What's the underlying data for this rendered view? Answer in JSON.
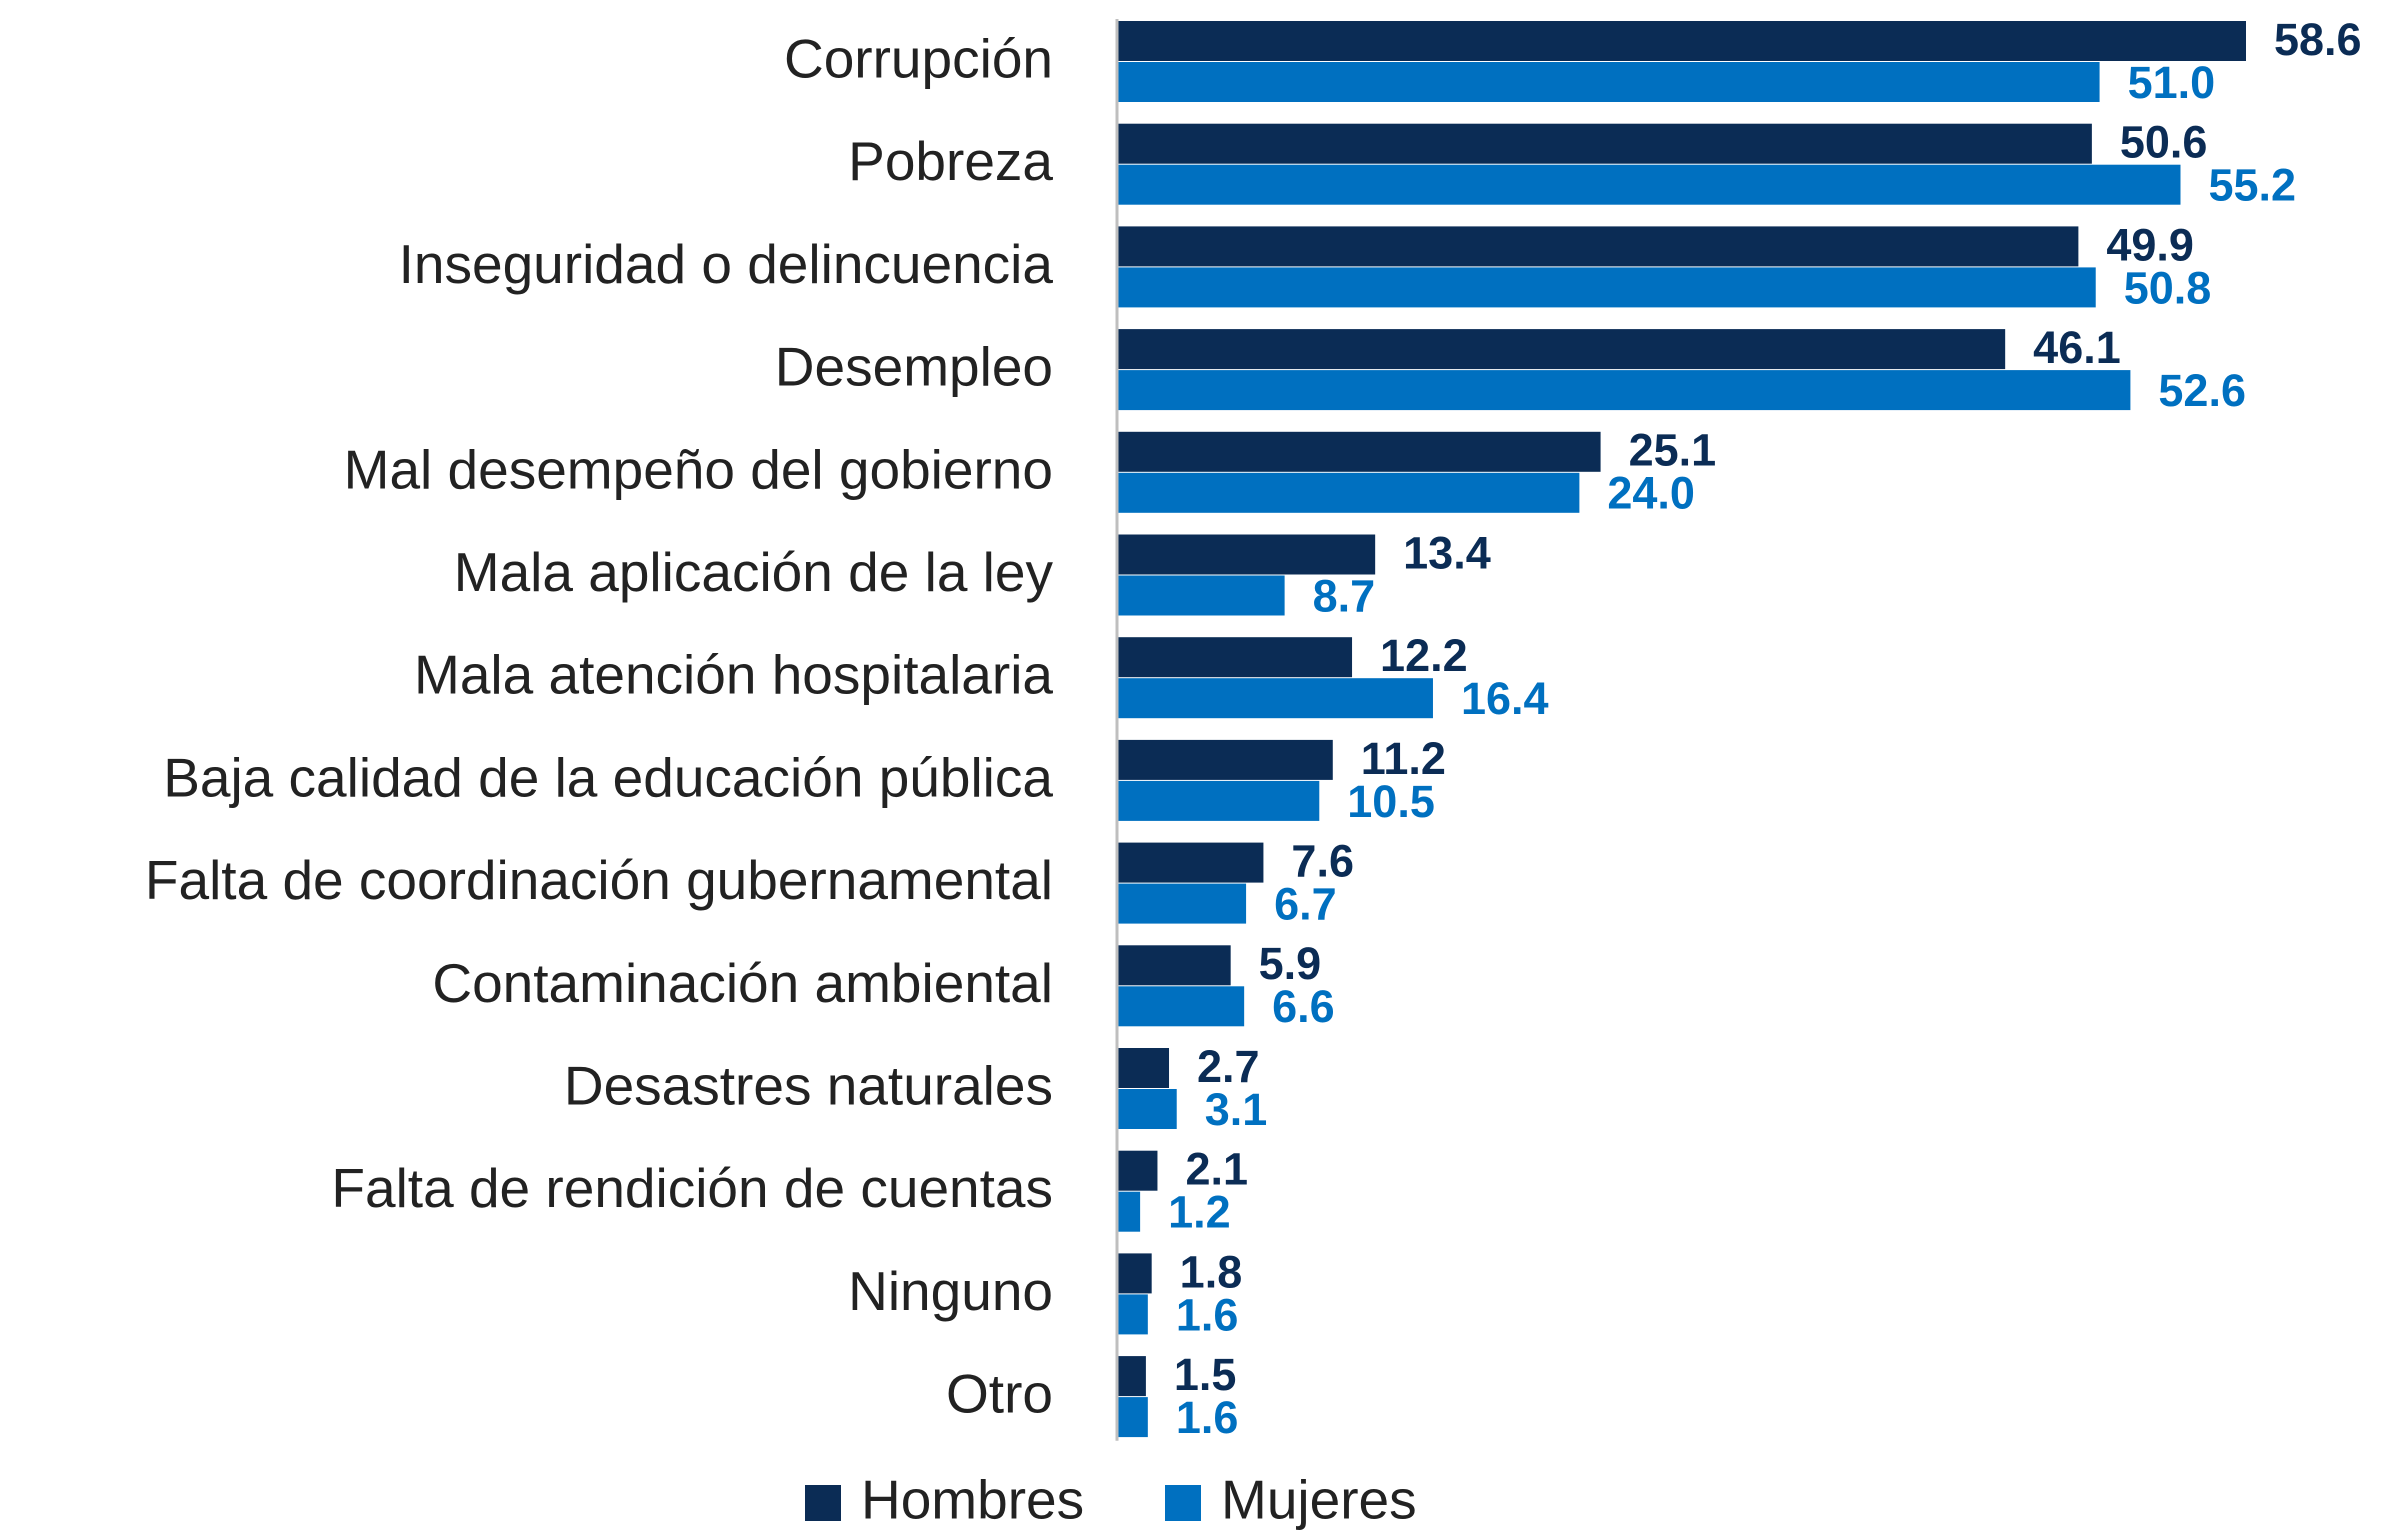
{
  "chart_data": {
    "type": "bar",
    "orientation": "horizontal",
    "categories": [
      "Corrupción",
      "Pobreza",
      "Inseguridad o delincuencia",
      "Desempleo",
      "Mal desempeño del gobierno",
      "Mala aplicación de la ley",
      "Mala atención hospitalaria",
      "Baja calidad de la educación pública",
      "Falta de coordinación gubernamental",
      "Contaminación ambiental",
      "Desastres naturales",
      "Falta de rendición de cuentas",
      "Ninguno",
      "Otro"
    ],
    "series": [
      {
        "name": "Hombres",
        "color": "#0b2c55",
        "values": [
          58.6,
          50.6,
          49.9,
          46.1,
          25.1,
          13.4,
          12.2,
          11.2,
          7.6,
          5.9,
          2.7,
          2.1,
          1.8,
          1.5
        ],
        "value_labels": [
          "58.6",
          "50.6",
          "49.9",
          "46.1",
          "25.1",
          "13.4",
          "12.2",
          "11.2",
          "7.6",
          "5.9",
          "2.7",
          "2.1",
          "1.8",
          "1.5"
        ]
      },
      {
        "name": "Mujeres",
        "color": "#0070c0",
        "values": [
          51.0,
          55.2,
          50.8,
          52.6,
          24.0,
          8.7,
          16.4,
          10.5,
          6.7,
          6.6,
          3.1,
          1.2,
          1.6,
          1.6
        ],
        "value_labels": [
          "51.0",
          "55.2",
          "50.8",
          "52.6",
          "24.0",
          "8.7",
          "16.4",
          "10.5",
          "6.7",
          "6.6",
          "3.1",
          "1.2",
          "1.6",
          "1.6"
        ]
      }
    ],
    "legend": "bottom"
  }
}
